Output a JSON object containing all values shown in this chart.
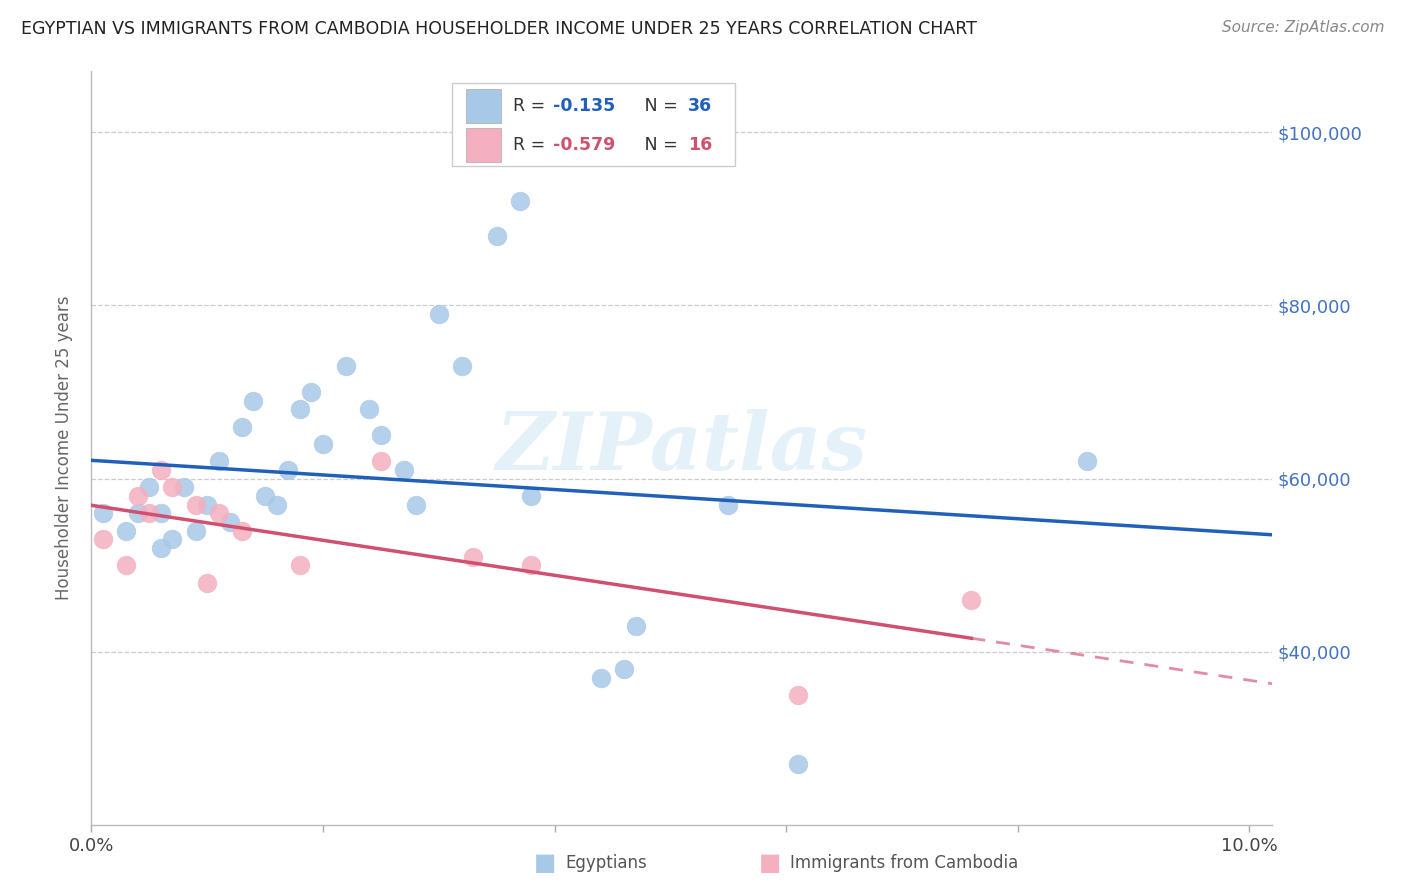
{
  "title": "EGYPTIAN VS IMMIGRANTS FROM CAMBODIA HOUSEHOLDER INCOME UNDER 25 YEARS CORRELATION CHART",
  "source": "Source: ZipAtlas.com",
  "ylabel": "Householder Income Under 25 years",
  "xlim": [
    0.0,
    0.102
  ],
  "ylim": [
    20000,
    107000
  ],
  "ytick_values": [
    40000,
    60000,
    80000,
    100000
  ],
  "ytick_labels": [
    "$40,000",
    "$60,000",
    "$80,000",
    "$100,000"
  ],
  "blue_R": -0.135,
  "blue_N": 36,
  "pink_R": -0.579,
  "pink_N": 16,
  "blue_color": "#a8c8e8",
  "pink_color": "#f4b0c0",
  "blue_line_color": "#2060b8",
  "pink_line_color": "#d05070",
  "label_color": "#4472c4",
  "watermark": "ZIPatlas",
  "egyptians_x": [
    0.001,
    0.003,
    0.004,
    0.005,
    0.006,
    0.006,
    0.007,
    0.008,
    0.009,
    0.01,
    0.011,
    0.012,
    0.013,
    0.014,
    0.015,
    0.016,
    0.017,
    0.018,
    0.019,
    0.02,
    0.022,
    0.024,
    0.025,
    0.027,
    0.028,
    0.03,
    0.032,
    0.035,
    0.037,
    0.038,
    0.044,
    0.046,
    0.047,
    0.055,
    0.061,
    0.086
  ],
  "egyptians_y": [
    56000,
    54000,
    56000,
    59000,
    56000,
    52000,
    53000,
    59000,
    54000,
    57000,
    62000,
    55000,
    66000,
    69000,
    58000,
    57000,
    61000,
    68000,
    70000,
    64000,
    73000,
    68000,
    65000,
    61000,
    57000,
    79000,
    73000,
    88000,
    92000,
    58000,
    37000,
    38000,
    43000,
    57000,
    27000,
    62000
  ],
  "cambodia_x": [
    0.001,
    0.003,
    0.004,
    0.005,
    0.006,
    0.007,
    0.009,
    0.01,
    0.011,
    0.013,
    0.018,
    0.025,
    0.033,
    0.038,
    0.061,
    0.076
  ],
  "cambodia_y": [
    53000,
    50000,
    58000,
    56000,
    61000,
    59000,
    57000,
    48000,
    56000,
    54000,
    50000,
    62000,
    51000,
    50000,
    35000,
    46000
  ]
}
